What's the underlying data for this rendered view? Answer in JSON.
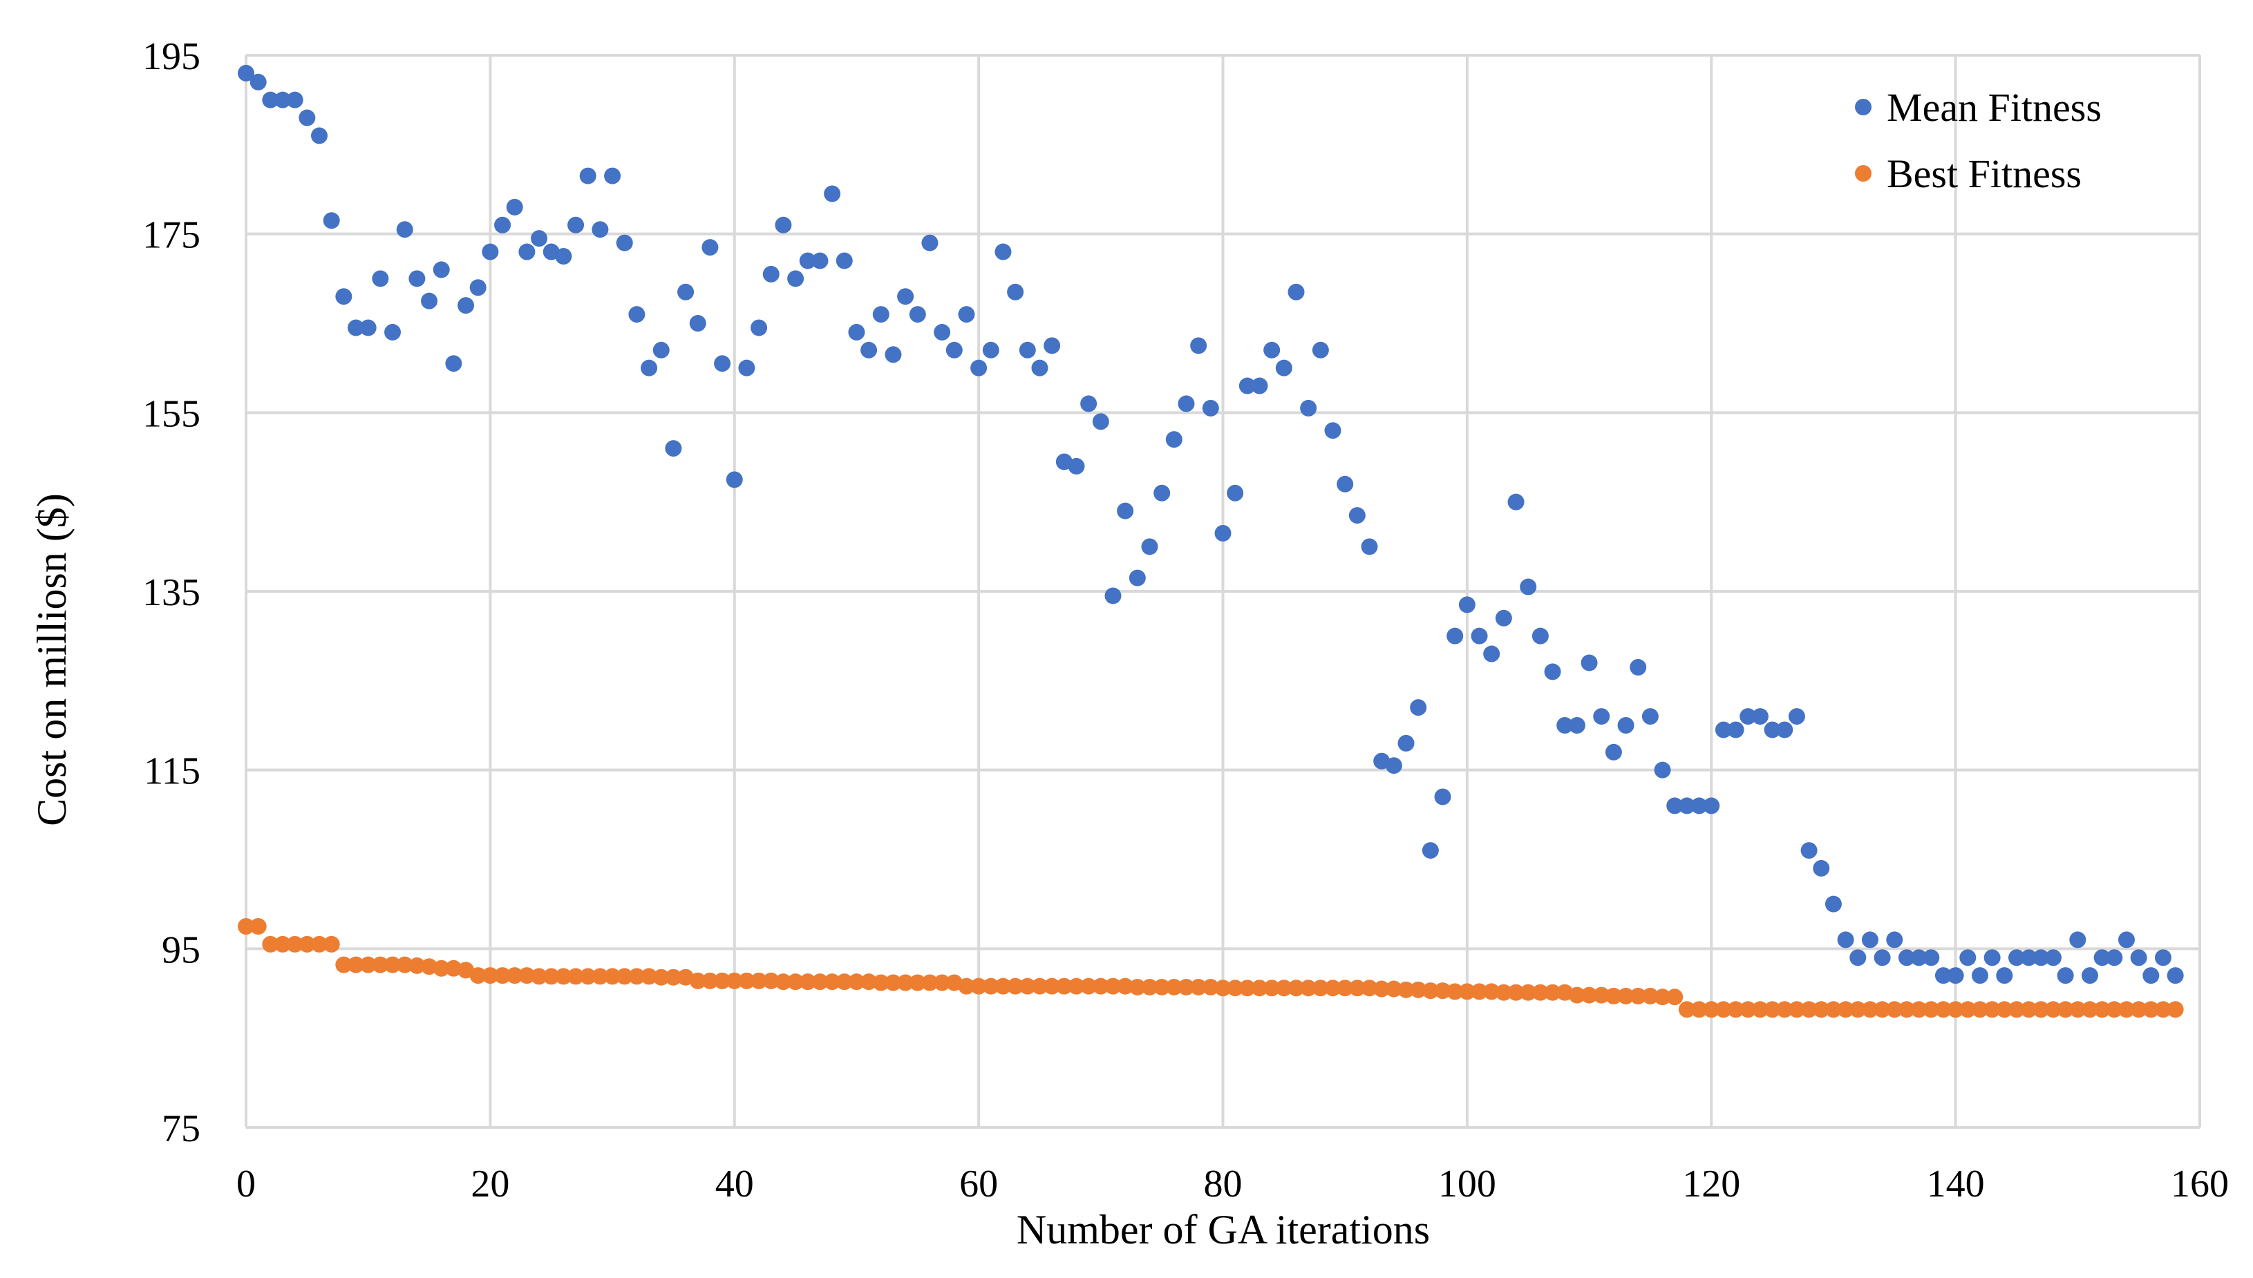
{
  "chart_data": {
    "type": "scatter",
    "title": "",
    "xlabel": "Number of GA iterations",
    "ylabel": "Cost on milliosn ($)",
    "xlim": [
      0,
      160
    ],
    "ylim": [
      75,
      195
    ],
    "xticks": [
      0,
      20,
      40,
      60,
      80,
      100,
      120,
      140,
      160
    ],
    "yticks": [
      75,
      95,
      115,
      135,
      155,
      175,
      195
    ],
    "grid": true,
    "legend_position": "top-right",
    "colors": {
      "mean": "#4472C4",
      "best": "#ED7D31",
      "grid": "#d9d9d9"
    },
    "series": [
      {
        "name": "Mean Fitness",
        "color": "#4472C4",
        "x": [
          0,
          1,
          2,
          3,
          4,
          5,
          6,
          7,
          8,
          9,
          10,
          11,
          12,
          13,
          14,
          15,
          16,
          17,
          18,
          19,
          20,
          21,
          22,
          23,
          24,
          25,
          26,
          27,
          28,
          29,
          30,
          31,
          32,
          33,
          34,
          35,
          36,
          37,
          38,
          39,
          40,
          41,
          42,
          43,
          44,
          45,
          46,
          47,
          48,
          49,
          50,
          51,
          52,
          53,
          54,
          55,
          56,
          57,
          58,
          59,
          60,
          61,
          62,
          63,
          64,
          65,
          66,
          67,
          68,
          69,
          70,
          71,
          72,
          73,
          74,
          75,
          76,
          77,
          78,
          79,
          80,
          81,
          82,
          83,
          84,
          85,
          86,
          87,
          88,
          89,
          90,
          91,
          92,
          93,
          94,
          95,
          96,
          97,
          98,
          99,
          100,
          101,
          102,
          103,
          104,
          105,
          106,
          107,
          108,
          109,
          110,
          111,
          112,
          113,
          114,
          115,
          116,
          117,
          118,
          119,
          120,
          121,
          122,
          123,
          124,
          125,
          126,
          127,
          128,
          129,
          130,
          131,
          132,
          133,
          134,
          135,
          136,
          137,
          138,
          139,
          140,
          141,
          142,
          143,
          144,
          145,
          146,
          147,
          148,
          149,
          150,
          151,
          152,
          153,
          154,
          155,
          156,
          157,
          158
        ],
        "y": [
          193,
          192,
          190,
          190,
          190,
          188,
          186,
          176.5,
          168,
          164.5,
          164.5,
          170,
          164,
          175.5,
          170,
          167.5,
          171,
          160.5,
          167,
          169,
          173,
          176,
          178,
          173,
          174.5,
          173,
          172.5,
          176,
          181.5,
          175.5,
          181.5,
          174,
          166,
          160,
          162,
          151,
          168.5,
          165,
          173.5,
          160.5,
          147.5,
          160,
          164.5,
          170.5,
          176,
          170,
          172,
          172,
          179.5,
          172,
          164,
          162,
          166,
          161.5,
          168,
          166,
          174,
          164,
          162,
          166,
          160,
          162,
          173,
          168.5,
          162,
          160,
          162.5,
          149.5,
          149,
          156,
          154,
          134.5,
          144,
          136.5,
          140,
          146,
          152,
          156,
          162.5,
          155.5,
          141.5,
          146,
          158,
          158,
          162,
          160,
          168.5,
          155.5,
          162,
          153,
          147,
          143.5,
          140,
          116,
          115.5,
          118,
          122,
          106,
          112,
          130,
          133.5,
          130,
          128,
          132,
          145,
          135.5,
          130,
          126,
          120,
          120,
          127,
          121,
          117,
          120,
          126.5,
          121,
          115,
          111,
          111,
          111,
          111,
          119.5,
          119.5,
          121,
          121,
          119.5,
          119.5,
          121,
          106,
          104,
          100,
          96,
          94,
          96,
          94,
          96,
          94,
          94,
          94,
          92,
          92,
          94,
          92,
          94,
          92,
          94,
          94,
          94,
          94,
          92,
          96,
          92,
          94,
          94,
          96,
          94,
          92,
          94,
          92
        ]
      },
      {
        "name": "Best Fitness",
        "color": "#ED7D31",
        "x": [
          0,
          1,
          2,
          3,
          4,
          5,
          6,
          7,
          8,
          9,
          10,
          11,
          12,
          13,
          14,
          15,
          16,
          17,
          18,
          19,
          20,
          21,
          22,
          23,
          24,
          25,
          26,
          27,
          28,
          29,
          30,
          31,
          32,
          33,
          34,
          35,
          36,
          37,
          38,
          39,
          40,
          41,
          42,
          43,
          44,
          45,
          46,
          47,
          48,
          49,
          50,
          51,
          52,
          53,
          54,
          55,
          56,
          57,
          58,
          59,
          60,
          61,
          62,
          63,
          64,
          65,
          66,
          67,
          68,
          69,
          70,
          71,
          72,
          73,
          74,
          75,
          76,
          77,
          78,
          79,
          80,
          81,
          82,
          83,
          84,
          85,
          86,
          87,
          88,
          89,
          90,
          91,
          92,
          93,
          94,
          95,
          96,
          97,
          98,
          99,
          100,
          101,
          102,
          103,
          104,
          105,
          106,
          107,
          108,
          109,
          110,
          111,
          112,
          113,
          114,
          115,
          116,
          117,
          118,
          119,
          120,
          121,
          122,
          123,
          124,
          125,
          126,
          127,
          128,
          129,
          130,
          131,
          132,
          133,
          134,
          135,
          136,
          137,
          138,
          139,
          140,
          141,
          142,
          143,
          144,
          145,
          146,
          147,
          148,
          149,
          150,
          151,
          152,
          153,
          154,
          155,
          156,
          157,
          158
        ],
        "y": [
          97.5,
          97.5,
          95.5,
          95.5,
          95.5,
          95.5,
          95.5,
          95.5,
          93.2,
          93.2,
          93.2,
          93.2,
          93.2,
          93.2,
          93.1,
          93,
          92.8,
          92.8,
          92.6,
          92,
          92,
          92,
          92,
          92,
          91.9,
          91.9,
          91.9,
          91.9,
          91.9,
          91.9,
          91.9,
          91.9,
          91.9,
          91.9,
          91.8,
          91.8,
          91.8,
          91.4,
          91.4,
          91.4,
          91.4,
          91.4,
          91.4,
          91.4,
          91.3,
          91.3,
          91.3,
          91.3,
          91.3,
          91.3,
          91.3,
          91.3,
          91.2,
          91.2,
          91.2,
          91.2,
          91.2,
          91.2,
          91.2,
          90.8,
          90.8,
          90.8,
          90.8,
          90.8,
          90.8,
          90.8,
          90.8,
          90.8,
          90.8,
          90.8,
          90.8,
          90.8,
          90.8,
          90.7,
          90.7,
          90.7,
          90.7,
          90.7,
          90.7,
          90.7,
          90.6,
          90.6,
          90.6,
          90.6,
          90.6,
          90.6,
          90.6,
          90.6,
          90.6,
          90.6,
          90.6,
          90.6,
          90.6,
          90.5,
          90.5,
          90.4,
          90.4,
          90.3,
          90.3,
          90.2,
          90.2,
          90.2,
          90.2,
          90.1,
          90.1,
          90.1,
          90.1,
          90.1,
          90.1,
          89.8,
          89.8,
          89.8,
          89.7,
          89.7,
          89.7,
          89.7,
          89.6,
          89.6,
          88.2,
          88.2,
          88.2,
          88.2,
          88.2,
          88.2,
          88.2,
          88.2,
          88.2,
          88.2,
          88.2,
          88.2,
          88.2,
          88.2,
          88.2,
          88.2,
          88.2,
          88.2,
          88.2,
          88.2,
          88.2,
          88.2,
          88.2,
          88.2,
          88.2,
          88.2,
          88.2,
          88.2,
          88.2,
          88.2,
          88.2,
          88.2,
          88.2,
          88.2,
          88.2,
          88.2,
          88.2,
          88.2,
          88.2,
          88.2,
          88.2
        ]
      }
    ]
  }
}
